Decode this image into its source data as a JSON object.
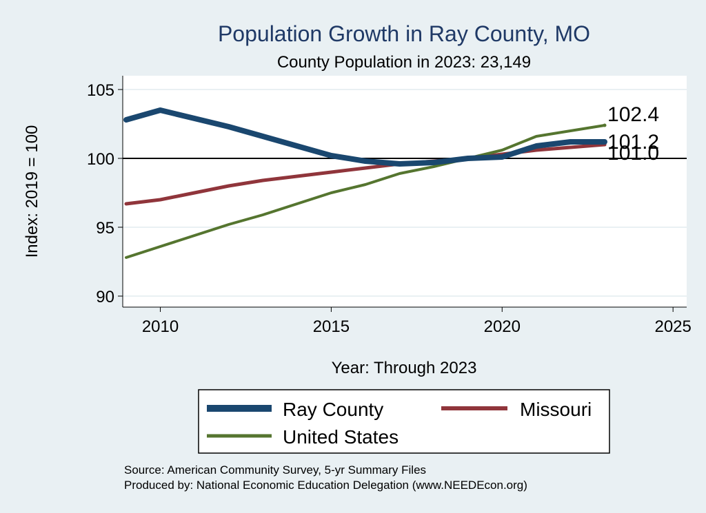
{
  "chart_data": {
    "type": "line",
    "title": "Population Growth in Ray County, MO",
    "subtitle": "County Population in 2023: 23,149",
    "xlabel": "Year: Through 2023",
    "ylabel": "Index: 2019 = 100",
    "xlim": [
      2008.9,
      2025.4
    ],
    "ylim": [
      89.2,
      106
    ],
    "xticks": [
      2010,
      2015,
      2020,
      2025
    ],
    "yticks": [
      90,
      95,
      100,
      105
    ],
    "reference_line": 100,
    "grid": true,
    "series": [
      {
        "name": "Ray  County",
        "color": "#1a476f",
        "width": 8,
        "x": [
          2009,
          2010,
          2011,
          2012,
          2013,
          2014,
          2015,
          2016,
          2017,
          2018,
          2019,
          2020,
          2021,
          2022,
          2023
        ],
        "values": [
          102.8,
          103.5,
          102.9,
          102.3,
          101.6,
          100.9,
          100.2,
          99.8,
          99.6,
          99.7,
          100.0,
          100.1,
          100.9,
          101.2,
          101.2
        ],
        "end_label": "101.2"
      },
      {
        "name": "Missouri",
        "color": "#90353b",
        "width": 5,
        "x": [
          2009,
          2010,
          2011,
          2012,
          2013,
          2014,
          2015,
          2016,
          2017,
          2018,
          2019,
          2020,
          2021,
          2022,
          2023
        ],
        "values": [
          96.7,
          97.0,
          97.5,
          98.0,
          98.4,
          98.7,
          99.0,
          99.3,
          99.6,
          99.8,
          100.0,
          100.3,
          100.6,
          100.8,
          101.0
        ],
        "end_label": "101.0"
      },
      {
        "name": "United States",
        "color": "#55752f",
        "width": 4,
        "x": [
          2009,
          2010,
          2011,
          2012,
          2013,
          2014,
          2015,
          2016,
          2017,
          2018,
          2019,
          2020,
          2021,
          2022,
          2023
        ],
        "values": [
          92.8,
          93.6,
          94.4,
          95.2,
          95.9,
          96.7,
          97.5,
          98.1,
          98.9,
          99.4,
          100.0,
          100.6,
          101.6,
          102.0,
          102.4
        ],
        "end_label": "102.4"
      }
    ],
    "legend": {
      "placement": "bottom",
      "entries": [
        "Ray  County",
        "Missouri",
        "United States"
      ]
    }
  },
  "source": {
    "line1": "Source: American Community Survey, 5-yr Summary Files",
    "line2": "Produced by: National Economic Education Delegation (www.NEEDEcon.org)"
  },
  "colors": {
    "background": "#e9f0f3",
    "plot_background": "#ffffff",
    "title": "#1f3966",
    "grid": "#e9f0f3"
  }
}
